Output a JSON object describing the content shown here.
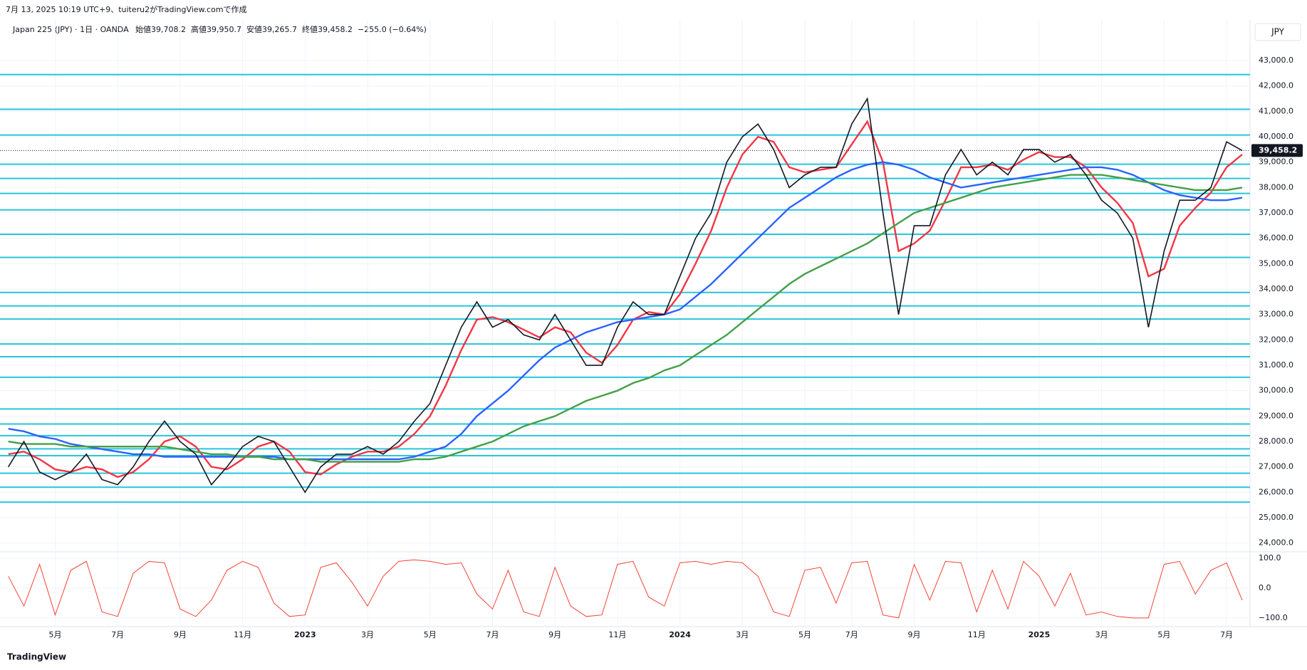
{
  "header": "7月 13, 2025 10:19 UTC+9、tuiteru2がTradingView.comで作成",
  "legend": {
    "symbol": "Japan 225 (JPY) · 1日 · OANDA",
    "open": "始値39,708.2",
    "high": "高値39,950.7",
    "low": "安値39,265.7",
    "close": "終値39,458.2",
    "change": "−255.0 (−0.64%)"
  },
  "footer": "TradingView",
  "chart_data": {
    "type": "line",
    "currency": "JPY",
    "categories": [
      null,
      null,
      null,
      "5月",
      null,
      null,
      null,
      "7月",
      null,
      null,
      null,
      "9月",
      null,
      null,
      null,
      "11月",
      null,
      null,
      null,
      "2023",
      null,
      null,
      null,
      "3月",
      null,
      null,
      null,
      "5月",
      null,
      null,
      null,
      "7月",
      null,
      null,
      null,
      "9月",
      null,
      null,
      null,
      "11月",
      null,
      null,
      null,
      "2024",
      null,
      null,
      null,
      "3月",
      null,
      null,
      null,
      "5月",
      null,
      null,
      "7月",
      null,
      null,
      null,
      "9月",
      null,
      null,
      null,
      "11月",
      null,
      null,
      null,
      "2025",
      null,
      null,
      null,
      "3月",
      null,
      null,
      null,
      "5月",
      null,
      null,
      null,
      "7月",
      null
    ],
    "series": [
      {
        "name": "price",
        "color": "#131722",
        "values": [
          27000,
          28000,
          26800,
          26500,
          26800,
          27500,
          26500,
          26300,
          27000,
          28000,
          28800,
          28000,
          27500,
          26300,
          27000,
          27800,
          28200,
          28000,
          27000,
          26000,
          27000,
          27500,
          27500,
          27800,
          27500,
          28000,
          28800,
          29500,
          31000,
          32500,
          33500,
          32500,
          32800,
          32200,
          32000,
          33000,
          32000,
          31000,
          31000,
          32500,
          33500,
          33000,
          33000,
          34500,
          36000,
          37000,
          39000,
          40000,
          40500,
          39500,
          38000,
          38500,
          38800,
          38800,
          40500,
          41500,
          37000,
          33000,
          36500,
          36500,
          38500,
          39500,
          38500,
          39000,
          38500,
          39500,
          39500,
          39000,
          39300,
          38500,
          37500,
          37000,
          36000,
          32500,
          35500,
          37500,
          37500,
          38000,
          39800,
          39458.2
        ]
      },
      {
        "name": "ma-fast",
        "color": "#f23645",
        "values": [
          27500,
          27600,
          27300,
          26900,
          26800,
          27000,
          26900,
          26600,
          26800,
          27300,
          28000,
          28200,
          27800,
          27000,
          26900,
          27300,
          27800,
          28000,
          27600,
          26800,
          26700,
          27100,
          27400,
          27600,
          27600,
          27800,
          28300,
          29000,
          30200,
          31600,
          32800,
          32900,
          32700,
          32400,
          32100,
          32500,
          32300,
          31500,
          31100,
          31800,
          32800,
          33100,
          33000,
          33800,
          35000,
          36300,
          38000,
          39300,
          40000,
          39800,
          38800,
          38600,
          38700,
          38800,
          39700,
          40600,
          39000,
          35500,
          35800,
          36300,
          37500,
          38800,
          38800,
          38900,
          38700,
          39100,
          39400,
          39200,
          39200,
          38800,
          38000,
          37400,
          36600,
          34500,
          34800,
          36500,
          37200,
          37800,
          38800,
          39300
        ]
      },
      {
        "name": "ma-mid",
        "color": "#2962ff",
        "values": [
          28500,
          28400,
          28200,
          28100,
          27900,
          27800,
          27700,
          27600,
          27500,
          27500,
          27400,
          27400,
          27400,
          27400,
          27400,
          27400,
          27400,
          27400,
          27300,
          27300,
          27300,
          27300,
          27300,
          27300,
          27300,
          27300,
          27400,
          27600,
          27800,
          28300,
          29000,
          29500,
          30000,
          30600,
          31200,
          31700,
          32000,
          32300,
          32500,
          32700,
          32800,
          32900,
          33000,
          33200,
          33700,
          34200,
          34800,
          35400,
          36000,
          36600,
          37200,
          37600,
          38000,
          38400,
          38700,
          38900,
          39000,
          38900,
          38700,
          38400,
          38200,
          38000,
          38100,
          38200,
          38300,
          38400,
          38500,
          38600,
          38700,
          38800,
          38800,
          38700,
          38500,
          38200,
          37900,
          37700,
          37600,
          37500,
          37500,
          37600
        ]
      },
      {
        "name": "ma-slow",
        "color": "#43a047",
        "values": [
          28000,
          27900,
          27900,
          27900,
          27800,
          27800,
          27800,
          27800,
          27800,
          27800,
          27800,
          27700,
          27600,
          27500,
          27500,
          27400,
          27400,
          27300,
          27300,
          27300,
          27200,
          27200,
          27200,
          27200,
          27200,
          27200,
          27300,
          27300,
          27400,
          27600,
          27800,
          28000,
          28300,
          28600,
          28800,
          29000,
          29300,
          29600,
          29800,
          30000,
          30300,
          30500,
          30800,
          31000,
          31400,
          31800,
          32200,
          32700,
          33200,
          33700,
          34200,
          34600,
          34900,
          35200,
          35500,
          35800,
          36200,
          36600,
          37000,
          37200,
          37400,
          37600,
          37800,
          38000,
          38100,
          38200,
          38300,
          38400,
          38500,
          38500,
          38500,
          38400,
          38300,
          38200,
          38100,
          38000,
          37900,
          37900,
          37900,
          38000
        ]
      }
    ],
    "last_price": {
      "value": 39458.2,
      "label": "39,458.2"
    },
    "levels": [
      42450,
      41080,
      40070,
      38920,
      38360,
      37770,
      37120,
      36160,
      35250,
      33870,
      33340,
      32820,
      31840,
      31340,
      30530,
      29280,
      28690,
      28230,
      27710,
      27440,
      26750,
      26200,
      25610
    ],
    "level_color": "#26c6da",
    "ylim": [
      23740,
      44460
    ],
    "yticks": [
      {
        "value": 24000,
        "label": "24,000.0"
      },
      {
        "value": 25000,
        "label": "25,000.0"
      },
      {
        "value": 26000,
        "label": "26,000.0"
      },
      {
        "value": 27000,
        "label": "27,000.0"
      },
      {
        "value": 28000,
        "label": "28,000.0"
      },
      {
        "value": 29000,
        "label": "29,000.0"
      },
      {
        "value": 30000,
        "label": "30,000.0"
      },
      {
        "value": 31000,
        "label": "31,000.0"
      },
      {
        "value": 32000,
        "label": "32,000.0"
      },
      {
        "value": 33000,
        "label": "33,000.0"
      },
      {
        "value": 34000,
        "label": "34,000.0"
      },
      {
        "value": 35000,
        "label": "35,000.0"
      },
      {
        "value": 36000,
        "label": "36,000.0"
      },
      {
        "value": 37000,
        "label": "37,000.0"
      },
      {
        "value": 38000,
        "label": "38,000.0"
      },
      {
        "value": 39000,
        "label": "39,000.0"
      },
      {
        "value": 40000,
        "label": "40,000.0"
      },
      {
        "value": 41000,
        "label": "41,000.0"
      },
      {
        "value": 42000,
        "label": "42,000.0"
      },
      {
        "value": 43000,
        "label": "43,000.0"
      }
    ],
    "grid": true,
    "oscillator": {
      "color": "#f44336",
      "values": [
        40,
        -60,
        80,
        -90,
        60,
        90,
        -80,
        -95,
        50,
        90,
        85,
        -70,
        -95,
        -40,
        60,
        90,
        70,
        -50,
        -95,
        -90,
        70,
        85,
        20,
        -60,
        40,
        90,
        95,
        90,
        80,
        85,
        -20,
        -70,
        60,
        -80,
        -95,
        70,
        -60,
        -95,
        -90,
        80,
        90,
        -30,
        -60,
        85,
        90,
        80,
        90,
        85,
        40,
        -80,
        -95,
        60,
        70,
        -50,
        85,
        90,
        -90,
        -100,
        80,
        -40,
        90,
        85,
        -80,
        60,
        -70,
        90,
        40,
        -60,
        50,
        -90,
        -80,
        -95,
        -100,
        -100,
        80,
        90,
        -20,
        60,
        85,
        -40
      ],
      "ylim": [
        -117,
        122
      ],
      "yticks": [
        {
          "value": 100,
          "label": "100.0"
        },
        {
          "value": 0,
          "label": "0.0"
        },
        {
          "value": -100,
          "label": "−100.0"
        }
      ]
    }
  }
}
